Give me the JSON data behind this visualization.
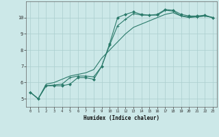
{
  "title": "",
  "xlabel": "Humidex (Indice chaleur)",
  "background_color": "#cce8e8",
  "grid_color": "#aacece",
  "line_color": "#2a7a6a",
  "xlim": [
    -0.5,
    23.5
  ],
  "ylim": [
    4.5,
    11.0
  ],
  "xticks": [
    0,
    1,
    2,
    3,
    4,
    5,
    6,
    7,
    8,
    9,
    10,
    11,
    12,
    13,
    14,
    15,
    16,
    17,
    18,
    19,
    20,
    21,
    22,
    23
  ],
  "yticks": [
    5,
    6,
    7,
    8,
    9,
    10
  ],
  "line1_x": [
    0,
    1,
    2,
    3,
    4,
    5,
    6,
    7,
    8,
    9,
    10,
    11,
    12,
    13,
    14,
    15,
    16,
    17,
    18,
    19,
    20,
    21,
    22,
    23
  ],
  "line1_y": [
    5.4,
    5.0,
    5.8,
    5.8,
    5.8,
    5.9,
    6.3,
    6.3,
    6.2,
    7.0,
    8.4,
    10.0,
    10.2,
    10.35,
    10.2,
    10.15,
    10.2,
    10.5,
    10.45,
    10.2,
    10.1,
    10.1,
    10.15,
    10.0
  ],
  "line2_x": [
    0,
    1,
    2,
    3,
    4,
    5,
    6,
    7,
    8,
    9,
    10,
    11,
    12,
    13,
    14,
    15,
    16,
    17,
    18,
    19,
    20,
    21,
    22,
    23
  ],
  "line2_y": [
    5.4,
    5.0,
    5.8,
    5.85,
    5.9,
    6.3,
    6.4,
    6.4,
    6.35,
    7.0,
    8.3,
    9.5,
    9.9,
    10.25,
    10.15,
    10.15,
    10.15,
    10.45,
    10.4,
    10.1,
    10.05,
    10.05,
    10.1,
    10.0
  ],
  "line3_x": [
    0,
    1,
    2,
    3,
    4,
    5,
    6,
    7,
    8,
    9,
    10,
    11,
    12,
    13,
    14,
    15,
    16,
    17,
    18,
    19,
    20,
    21,
    22,
    23
  ],
  "line3_y": [
    5.4,
    5.0,
    5.9,
    6.0,
    6.2,
    6.4,
    6.5,
    6.6,
    6.8,
    7.5,
    8.0,
    8.5,
    9.0,
    9.4,
    9.6,
    9.8,
    10.0,
    10.2,
    10.3,
    10.1,
    10.0,
    10.05,
    10.1,
    10.0
  ]
}
